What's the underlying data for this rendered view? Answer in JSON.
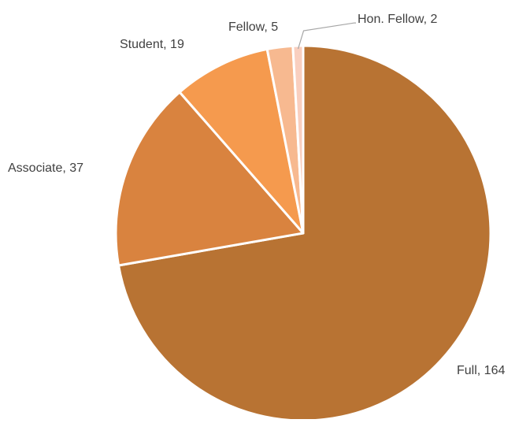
{
  "chart_data": {
    "type": "pie",
    "title": "",
    "slices": [
      {
        "label": "Full",
        "value": 164,
        "color": "#B87333",
        "data_label": "Full, 164"
      },
      {
        "label": "Associate",
        "value": 37,
        "color": "#D9833F",
        "data_label": "Associate, 37"
      },
      {
        "label": "Student",
        "value": 19,
        "color": "#F59A4E",
        "data_label": "Student, 19"
      },
      {
        "label": "Fellow",
        "value": 5,
        "color": "#F7B990",
        "data_label": "Fellow, 5"
      },
      {
        "label": "Hon. Fellow",
        "value": 2,
        "color": "#F9CFBF",
        "data_label": "Hon. Fellow, 2"
      }
    ],
    "legend": "none",
    "slice_border_color": "#FFFFFF",
    "leader_line_color": "#A6A6A6"
  }
}
